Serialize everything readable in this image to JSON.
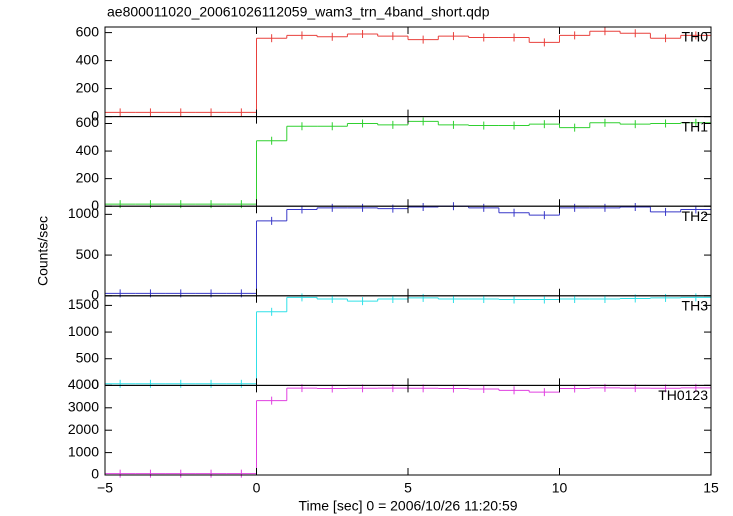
{
  "figure": {
    "title": "ae800011020_20061026112059_wam3_trn_4band_short.qdp",
    "x_label": "Time [sec] 0 = 2006/10/26 11:20:59",
    "y_label": "Counts/sec",
    "xlim": [
      -5,
      15
    ],
    "xticks": [
      {
        "value": -5,
        "label": "−5"
      },
      0,
      5,
      10,
      15
    ]
  },
  "chart_data": [
    {
      "type": "step",
      "name": "TH0",
      "color": "#e8403c",
      "ylim": [
        0,
        640
      ],
      "yticks": [
        0,
        200,
        400,
        600
      ],
      "x": [
        -4.5,
        -3.5,
        -2.5,
        -1.5,
        -0.5,
        0.5,
        1.5,
        2.5,
        3.5,
        4.5,
        5.5,
        6.5,
        7.5,
        8.5,
        9.5,
        10.5,
        11.5,
        12.5,
        13.5,
        14.5
      ],
      "values": [
        30,
        30,
        30,
        30,
        30,
        560,
        580,
        570,
        590,
        575,
        550,
        575,
        565,
        565,
        530,
        580,
        610,
        595,
        560,
        580
      ]
    },
    {
      "type": "step",
      "name": "TH1",
      "color": "#30d030",
      "ylim": [
        0,
        650
      ],
      "yticks": [
        0,
        200,
        400,
        600
      ],
      "x": [
        -4.5,
        -3.5,
        -2.5,
        -1.5,
        -0.5,
        0.5,
        1.5,
        2.5,
        3.5,
        4.5,
        5.5,
        6.5,
        7.5,
        8.5,
        9.5,
        10.5,
        11.5,
        12.5,
        13.5,
        14.5
      ],
      "values": [
        15,
        15,
        15,
        15,
        15,
        475,
        580,
        580,
        600,
        590,
        615,
        590,
        585,
        585,
        595,
        570,
        605,
        595,
        600,
        605
      ]
    },
    {
      "type": "step",
      "name": "TH2",
      "color": "#3838c8",
      "ylim": [
        0,
        1100
      ],
      "yticks": [
        0,
        500,
        1000
      ],
      "x": [
        -4.5,
        -3.5,
        -2.5,
        -1.5,
        -0.5,
        0.5,
        1.5,
        2.5,
        3.5,
        4.5,
        5.5,
        6.5,
        7.5,
        8.5,
        9.5,
        10.5,
        11.5,
        12.5,
        13.5,
        14.5
      ],
      "values": [
        30,
        30,
        30,
        30,
        30,
        920,
        1060,
        1080,
        1080,
        1070,
        1090,
        1100,
        1080,
        1020,
        990,
        1080,
        1080,
        1090,
        1030,
        1060
      ]
    },
    {
      "type": "step",
      "name": "TH3",
      "color": "#30e0e8",
      "ylim": [
        0,
        1680
      ],
      "yticks": [
        0,
        500,
        1000,
        1500
      ],
      "x": [
        -4.5,
        -3.5,
        -2.5,
        -1.5,
        -0.5,
        0.5,
        1.5,
        2.5,
        3.5,
        4.5,
        5.5,
        6.5,
        7.5,
        8.5,
        9.5,
        10.5,
        11.5,
        12.5,
        13.5,
        14.5
      ],
      "values": [
        30,
        30,
        30,
        30,
        30,
        1380,
        1650,
        1620,
        1580,
        1620,
        1640,
        1620,
        1620,
        1610,
        1610,
        1620,
        1620,
        1630,
        1640,
        1650
      ]
    },
    {
      "type": "step",
      "name": "TH0123",
      "color": "#e040e0",
      "ylim": [
        0,
        4000
      ],
      "yticks": [
        0,
        1000,
        2000,
        3000,
        4000
      ],
      "x": [
        -4.5,
        -3.5,
        -2.5,
        -1.5,
        -0.5,
        0.5,
        1.5,
        2.5,
        3.5,
        4.5,
        5.5,
        6.5,
        7.5,
        8.5,
        9.5,
        10.5,
        11.5,
        12.5,
        13.5,
        14.5
      ],
      "values": [
        60,
        60,
        60,
        60,
        60,
        3320,
        3880,
        3860,
        3870,
        3880,
        3870,
        3860,
        3840,
        3780,
        3700,
        3860,
        3890,
        3880,
        3870,
        3890
      ]
    }
  ]
}
